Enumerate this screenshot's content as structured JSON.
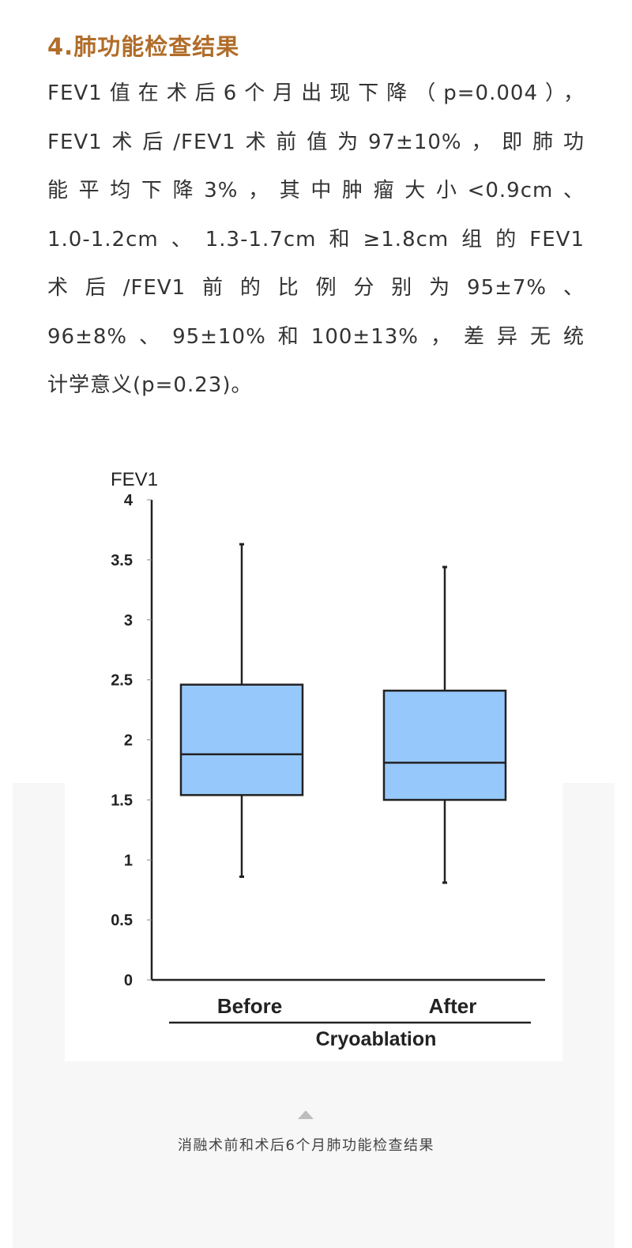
{
  "section_title": "4.肺功能检查结果",
  "paragraph_lines": [
    "FEV1值在术后6个月出现下降（p=0.004），",
    "FEV1术后/FEV1术前值为97±10%，即肺功",
    "能平均下降3%，其中肿瘤大小<0.9cm、",
    "1.0-1.2cm、1.3-1.7cm和≥1.8cm组的FEV1",
    "术后/FEV1前的比例分别为95±7%、",
    "96±8%、95±10%和100±13%，差异无统",
    "计学意义(p=0.23)。"
  ],
  "caption": "消融术前和术后6个月肺功能检查结果",
  "caption_icon": "triangle-up-icon",
  "chart_data": {
    "type": "box",
    "ylabel": "FEV1",
    "xlabel": "Cryoablation",
    "categories": [
      "Before",
      "After"
    ],
    "ylim": [
      0,
      4
    ],
    "yticks": [
      "0",
      "0.5",
      "1",
      "1.5",
      "2",
      "2.5",
      "3",
      "3.5",
      "4"
    ],
    "grid": false,
    "box_color": "#96c8fc",
    "series": [
      {
        "category": "Before",
        "min": 0.86,
        "q1": 1.54,
        "median": 1.88,
        "q3": 2.46,
        "max": 3.63
      },
      {
        "category": "After",
        "min": 0.81,
        "q1": 1.5,
        "median": 1.81,
        "q3": 2.41,
        "max": 3.44
      }
    ]
  }
}
